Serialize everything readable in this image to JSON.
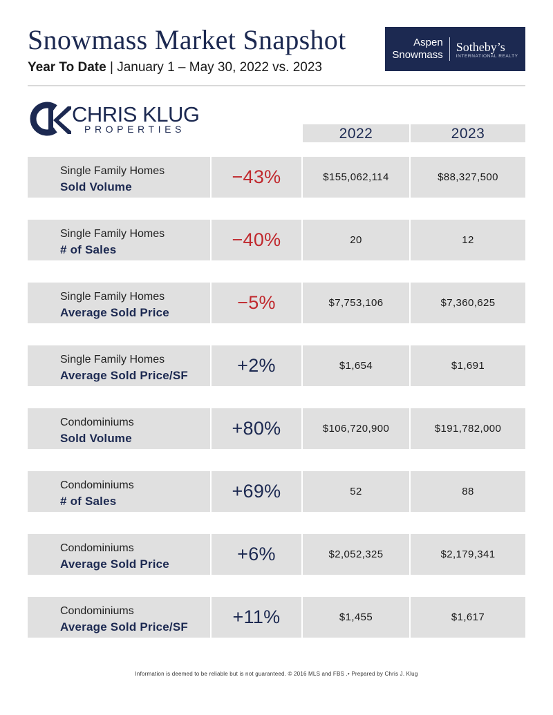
{
  "header": {
    "title": "Snowmass Market Snapshot",
    "subtitle_bold": "Year To Date",
    "subtitle_rest": " | January 1 – May 30, 2022 vs. 2023"
  },
  "brand": {
    "line1": "Aspen",
    "line2": "Snowmass",
    "name": "Sotheby’s",
    "tagline": "INTERNATIONAL REALTY"
  },
  "logo": {
    "name": "CHRIS KLUG",
    "sub": "PROPERTIES"
  },
  "columns": {
    "year1": "2022",
    "year2": "2023"
  },
  "colors": {
    "navy": "#1c2951",
    "negative": "#c0282d",
    "positive": "#1c2951",
    "row_bg": "#e0e0e0"
  },
  "rows": [
    {
      "category": "Single Family Homes",
      "metric": "Sold Volume",
      "change": "−43%",
      "direction": "down",
      "v2022": "$155,062,114",
      "v2023": "$88,327,500"
    },
    {
      "category": "Single Family Homes",
      "metric": "# of Sales",
      "change": "−40%",
      "direction": "down",
      "v2022": "20",
      "v2023": "12"
    },
    {
      "category": "Single Family Homes",
      "metric": "Average Sold Price",
      "change": "−5%",
      "direction": "down",
      "v2022": "$7,753,106",
      "v2023": "$7,360,625"
    },
    {
      "category": "Single Family Homes",
      "metric": "Average Sold Price/SF",
      "change": "+2%",
      "direction": "up",
      "v2022": "$1,654",
      "v2023": "$1,691"
    },
    {
      "category": "Condominiums",
      "metric": "Sold Volume",
      "change": "+80%",
      "direction": "up",
      "v2022": "$106,720,900",
      "v2023": "$191,782,000"
    },
    {
      "category": "Condominiums",
      "metric": "# of Sales",
      "change": "+69%",
      "direction": "up",
      "v2022": "52",
      "v2023": "88"
    },
    {
      "category": "Condominiums",
      "metric": "Average Sold Price",
      "change": "+6%",
      "direction": "up",
      "v2022": "$2,052,325",
      "v2023": "$2,179,341"
    },
    {
      "category": "Condominiums",
      "metric": "Average Sold Price/SF",
      "change": "+11%",
      "direction": "up",
      "v2022": "$1,455",
      "v2023": "$1,617"
    }
  ],
  "footer": "Information is deemed to be reliable but is not guaranteed. © 2016 MLS and FBS .• Prepared by Chris J. Klug"
}
